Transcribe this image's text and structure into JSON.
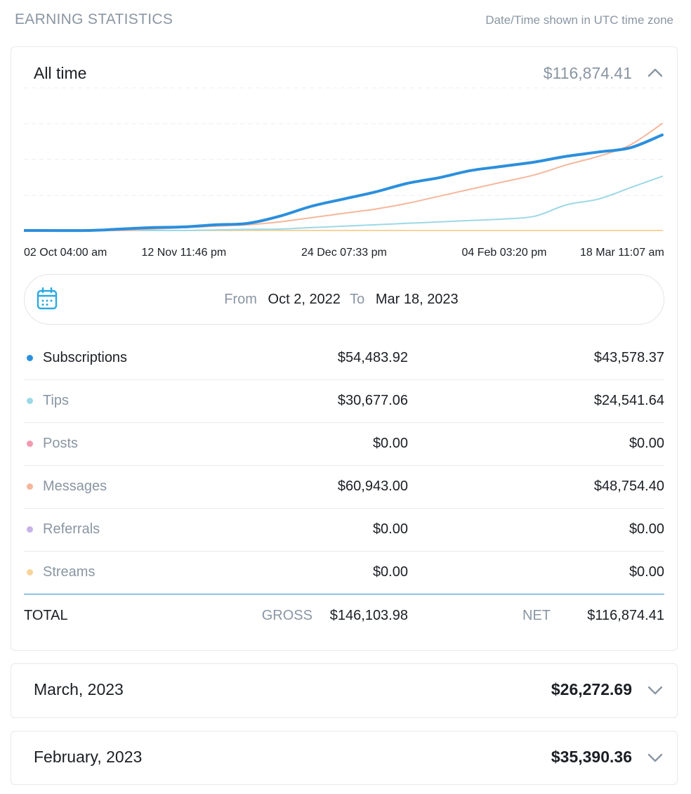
{
  "header": {
    "title": "EARNING STATISTICS",
    "timezone_note": "Date/Time shown in UTC time zone"
  },
  "main_card": {
    "title": "All time",
    "amount": "$116,874.41",
    "toggle_icon": "chevron-up-icon"
  },
  "chart_data": {
    "type": "line",
    "x_tick_labels": [
      "02 Oct 04:00 am",
      "12 Nov 11:46 pm",
      "24 Dec 07:33 pm",
      "04 Feb 03:20 pm",
      "18 Mar 11:07 am"
    ],
    "x": [
      0,
      0.1,
      0.15,
      0.2,
      0.25,
      0.3,
      0.35,
      0.4,
      0.45,
      0.5,
      0.55,
      0.6,
      0.65,
      0.7,
      0.75,
      0.8,
      0.85,
      0.9,
      0.95,
      1.0
    ],
    "ylim": [
      0,
      1
    ],
    "grid": true,
    "series": [
      {
        "name": "Subscriptions",
        "color": "#2b8fdd",
        "values": [
          0,
          0,
          0.01,
          0.02,
          0.025,
          0.04,
          0.05,
          0.1,
          0.17,
          0.22,
          0.27,
          0.33,
          0.37,
          0.42,
          0.45,
          0.48,
          0.52,
          0.55,
          0.58,
          0.67
        ]
      },
      {
        "name": "Tips",
        "color": "#9dd8e6",
        "values": [
          0,
          0,
          0,
          0,
          0,
          0.004,
          0.008,
          0.01,
          0.02,
          0.03,
          0.04,
          0.05,
          0.06,
          0.07,
          0.08,
          0.1,
          0.18,
          0.22,
          0.3,
          0.38
        ]
      },
      {
        "name": "Posts",
        "color": "#f19aaf",
        "values": [
          0,
          0,
          0,
          0,
          0,
          0,
          0,
          0,
          0,
          0,
          0,
          0,
          0,
          0,
          0,
          0,
          0,
          0,
          0,
          0
        ]
      },
      {
        "name": "Messages",
        "color": "#f5b79c",
        "values": [
          0,
          0,
          0,
          0.01,
          0.02,
          0.03,
          0.04,
          0.06,
          0.09,
          0.12,
          0.15,
          0.19,
          0.24,
          0.29,
          0.34,
          0.39,
          0.46,
          0.52,
          0.6,
          0.75
        ]
      },
      {
        "name": "Referrals",
        "color": "#c8b2e8",
        "values": [
          0,
          0,
          0,
          0,
          0,
          0,
          0,
          0,
          0,
          0,
          0,
          0,
          0,
          0,
          0,
          0,
          0,
          0,
          0,
          0
        ]
      },
      {
        "name": "Streams",
        "color": "#f7d49a",
        "values": [
          0,
          0,
          0,
          0,
          0,
          0,
          0,
          0,
          0,
          0,
          0,
          0,
          0,
          0,
          0,
          0,
          0,
          0,
          0,
          0
        ]
      }
    ]
  },
  "date_range": {
    "icon": "calendar-icon",
    "from_label": "From",
    "from_value": "Oct 2, 2022",
    "to_label": "To",
    "to_value": "Mar 18, 2023"
  },
  "rows": [
    {
      "name": "Subscriptions",
      "gross": "$54,483.92",
      "net": "$43,578.37",
      "color": "#2b8fdd",
      "name_color": "#1b1f24"
    },
    {
      "name": "Tips",
      "gross": "$30,677.06",
      "net": "$24,541.64",
      "color": "#9dd8e6",
      "name_color": "#8a96a3"
    },
    {
      "name": "Posts",
      "gross": "$0.00",
      "net": "$0.00",
      "color": "#f19aaf",
      "name_color": "#8a96a3"
    },
    {
      "name": "Messages",
      "gross": "$60,943.00",
      "net": "$48,754.40",
      "color": "#f5b79c",
      "name_color": "#8a96a3"
    },
    {
      "name": "Referrals",
      "gross": "$0.00",
      "net": "$0.00",
      "color": "#c8b2e8",
      "name_color": "#8a96a3"
    },
    {
      "name": "Streams",
      "gross": "$0.00",
      "net": "$0.00",
      "color": "#f7d49a",
      "name_color": "#8a96a3"
    }
  ],
  "total": {
    "label": "TOTAL",
    "gross_label": "GROSS",
    "gross_value": "$146,103.98",
    "net_label": "NET",
    "net_value": "$116,874.41"
  },
  "months": [
    {
      "title": "March, 2023",
      "amount": "$26,272.69",
      "toggle_icon": "chevron-down-icon"
    },
    {
      "title": "February, 2023",
      "amount": "$35,390.36",
      "toggle_icon": "chevron-down-icon"
    }
  ],
  "colors": {
    "accent": "#2b8fdd",
    "muted_text": "#8a96a3",
    "divider": "#e6e9ec"
  }
}
